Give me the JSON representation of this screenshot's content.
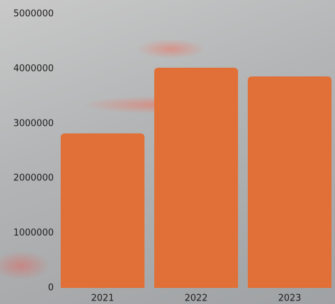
{
  "chart_data": {
    "type": "bar",
    "categories": [
      "2021",
      "2022",
      "2023"
    ],
    "values": [
      2820000,
      4020000,
      3860000
    ],
    "color": "#e07038",
    "ylim": [
      0,
      5000000
    ],
    "yticks": [
      0,
      1000000,
      2000000,
      3000000,
      4000000,
      5000000
    ],
    "grid": false
  }
}
